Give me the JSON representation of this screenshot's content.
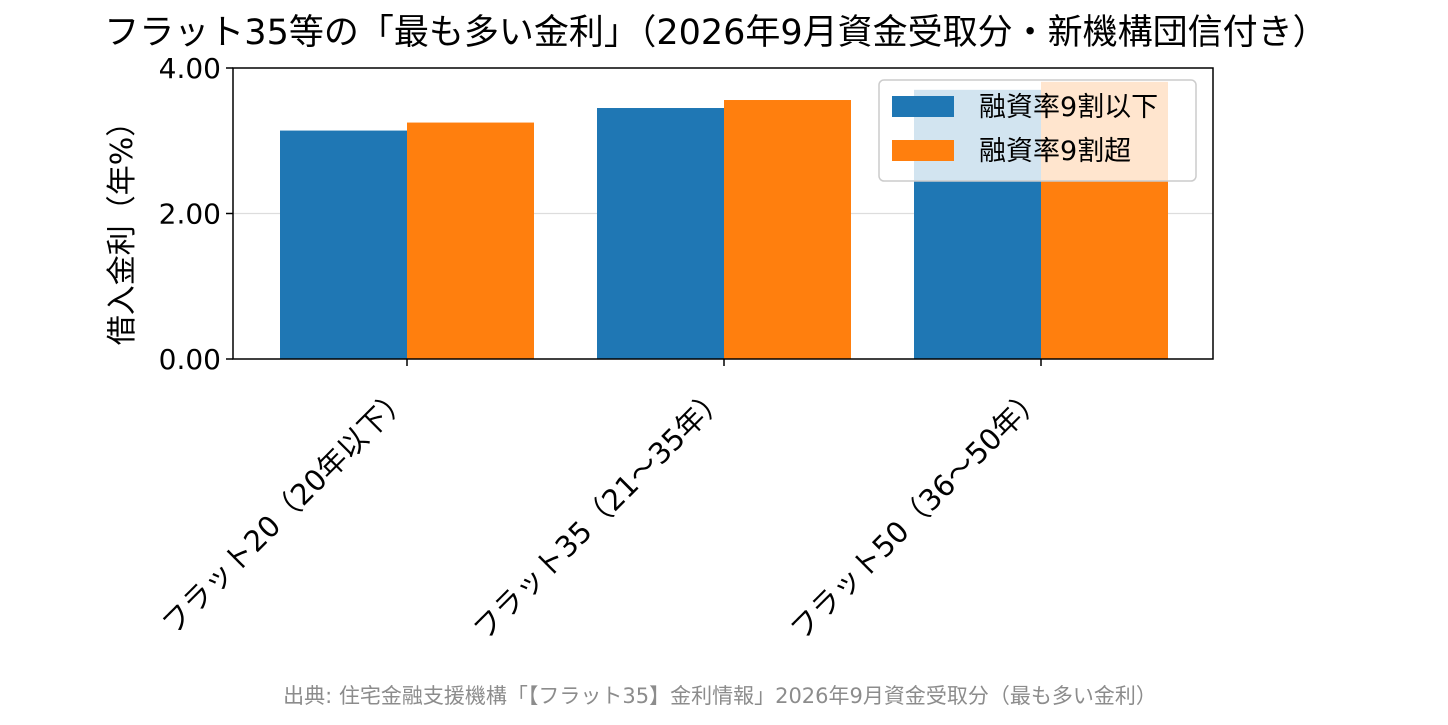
{
  "chart_data": {
    "type": "bar",
    "title": "フラット35等の「最も多い金利」（2026年9月資金受取分・新機構団信付き）",
    "ylabel": "借入金利（年%）",
    "xlabel": "",
    "categories": [
      "フラット20（20年以下）",
      "フラット35（21〜35年）",
      "フラット50（36〜50年）"
    ],
    "series": [
      {
        "name": "融資率9割以下",
        "color": "#1f77b4",
        "values": [
          3.14,
          3.45,
          3.7
        ]
      },
      {
        "name": "融資率9割超",
        "color": "#ff7f0e",
        "values": [
          3.25,
          3.56,
          3.81
        ]
      }
    ],
    "ylim": [
      0,
      4
    ],
    "yticks": [
      0,
      2,
      4
    ],
    "ytick_labels": [
      "0.00",
      "2.00",
      "4.00"
    ],
    "grid": "horizontal",
    "legend_position": "top-right",
    "source": "出典: 住宅金融支援機構「【フラット35】金利情報」2026年9月資金受取分（最も多い金利）"
  }
}
